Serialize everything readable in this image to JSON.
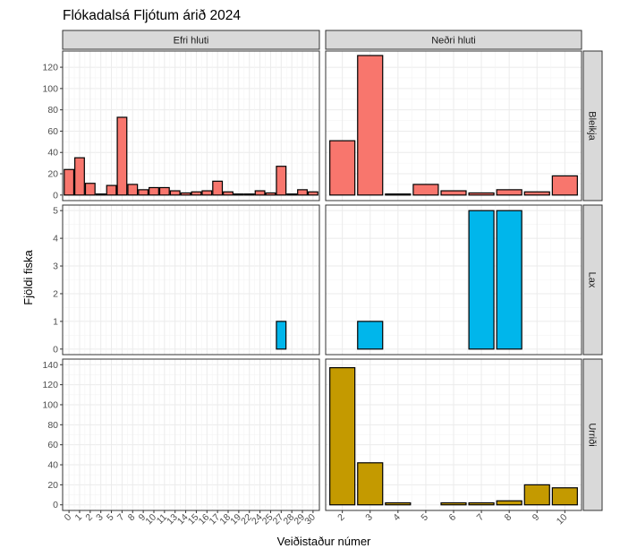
{
  "chart_data": {
    "type": "bar",
    "title": "Flókadalsá Fljótum árið 2024",
    "xlabel": "Veiðistaður númer",
    "ylabel": "Fjöldi fiska",
    "grid": true,
    "facet_columns": [
      {
        "name": "Efri hluti",
        "categories": [
          "0",
          "1",
          "2",
          "3",
          "5",
          "7",
          "8",
          "9",
          "10",
          "11",
          "13",
          "14",
          "15",
          "16",
          "17",
          "18",
          "19",
          "22",
          "24",
          "25",
          "27",
          "28",
          "29",
          "30"
        ],
        "tick_labels": [
          "0",
          "1",
          "2",
          "3",
          "5",
          "7",
          "8",
          "9",
          "10",
          "11",
          "13",
          "14",
          "15",
          "16",
          "17",
          "18",
          "19",
          "22",
          "24",
          "25",
          "27",
          "28",
          "29",
          "30"
        ]
      },
      {
        "name": "Neðri hluti",
        "categories": [
          "2",
          "3",
          "4",
          "5",
          "6",
          "7",
          "8",
          "9",
          "10"
        ],
        "tick_labels": [
          "2",
          "3",
          "4",
          "5",
          "6",
          "7",
          "8",
          "9",
          "10"
        ]
      }
    ],
    "facet_rows": [
      {
        "name": "Bleikja",
        "color": "#F8766D",
        "ylim": [
          0,
          130
        ],
        "yticks": [
          0,
          20,
          40,
          60,
          80,
          100,
          120
        ],
        "values": [
          [
            24,
            35,
            11,
            1,
            9,
            73,
            10,
            5,
            7,
            7,
            4,
            2,
            3,
            4,
            13,
            3,
            1,
            1,
            4,
            2,
            27,
            1,
            5,
            3
          ],
          [
            51,
            131,
            1,
            10,
            4,
            2,
            5,
            3,
            18
          ]
        ]
      },
      {
        "name": "Lax",
        "color": "#00B6EB",
        "ylim": [
          0,
          5
        ],
        "yticks": [
          0,
          1,
          2,
          3,
          4,
          5
        ],
        "values": [
          [
            0,
            0,
            0,
            0,
            0,
            0,
            0,
            0,
            0,
            0,
            0,
            0,
            0,
            0,
            0,
            0,
            0,
            0,
            0,
            0,
            1,
            0,
            0,
            0
          ],
          [
            0,
            1,
            0,
            0,
            0,
            5,
            5,
            0,
            0
          ]
        ]
      },
      {
        "name": "Urriði",
        "color": "#C49A00",
        "ylim": [
          0,
          140
        ],
        "yticks": [
          0,
          20,
          40,
          60,
          80,
          100,
          120,
          140
        ],
        "values": [
          [
            0,
            0,
            0,
            0,
            0,
            0,
            0,
            0,
            0,
            0,
            0,
            0,
            0,
            0,
            0,
            0,
            0,
            0,
            0,
            0,
            0,
            0,
            0,
            0
          ],
          [
            137,
            42,
            2,
            0,
            2,
            2,
            4,
            20,
            17
          ]
        ]
      }
    ]
  }
}
